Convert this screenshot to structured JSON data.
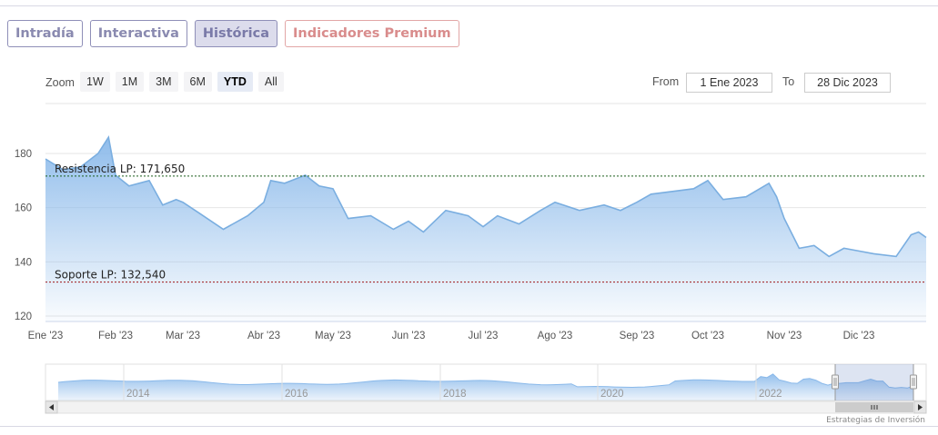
{
  "tabs": [
    {
      "label": "Intradía",
      "state": "normal"
    },
    {
      "label": "Interactiva",
      "state": "normal"
    },
    {
      "label": "Histórica",
      "state": "active"
    },
    {
      "label": "Indicadores Premium",
      "state": "premium"
    }
  ],
  "zoom": {
    "label": "Zoom",
    "buttons": [
      "1W",
      "1M",
      "3M",
      "6M",
      "YTD",
      "All"
    ],
    "selected": "YTD"
  },
  "range": {
    "from_label": "From",
    "from_value": "1 Ene 2023",
    "to_label": "To",
    "to_value": "28 Dic 2023"
  },
  "credit": "Estrategias de Inversión",
  "colors": {
    "line": "#7aaee0",
    "fill_top": "#8ab9ea",
    "resistance": "#1a5e1a",
    "support": "#a01818"
  },
  "chart_data": {
    "type": "area",
    "title": "",
    "xlabel": "",
    "ylabel": "",
    "ylim": [
      115,
      175
    ],
    "yticks": [
      120,
      140,
      160,
      180
    ],
    "x_tick_labels": [
      "Ene '23",
      "Feb '23",
      "Mar '23",
      "Abr '23",
      "May '23",
      "Jun '23",
      "Jul '23",
      "Ago '23",
      "Sep '23",
      "Oct '23",
      "Nov '23",
      "Dic '23"
    ],
    "grid": true,
    "x_month_index": [
      0,
      0.25,
      0.5,
      0.75,
      0.9,
      1.0,
      1.2,
      1.5,
      1.7,
      1.9,
      2.0,
      2.2,
      2.5,
      2.8,
      3.0,
      3.1,
      3.3,
      3.6,
      3.8,
      4.0,
      4.2,
      4.5,
      4.8,
      5.0,
      5.2,
      5.5,
      5.8,
      6.0,
      6.2,
      6.5,
      6.8,
      7.0,
      7.3,
      7.6,
      7.8,
      8.0,
      8.2,
      8.5,
      8.8,
      9.0,
      9.2,
      9.5,
      9.8,
      9.9,
      10.0,
      10.2,
      10.4,
      10.6,
      10.8,
      11.0,
      11.2,
      11.5,
      11.7,
      11.8,
      12.0
    ],
    "y": [
      178,
      174,
      175,
      180,
      186,
      172,
      168,
      170,
      161,
      163,
      162,
      158,
      152,
      157,
      162,
      170,
      169,
      172,
      168,
      167,
      156,
      157,
      152,
      155,
      151,
      159,
      157,
      153,
      157,
      154,
      159,
      162,
      159,
      161,
      159,
      162,
      165,
      166,
      167,
      170,
      163,
      164,
      169,
      164,
      156,
      145,
      146,
      142,
      145,
      144,
      143,
      142,
      150,
      151,
      149
    ],
    "series": [
      {
        "name": "",
        "values": [
          178,
          174,
          175,
          180,
          186,
          172,
          168,
          170,
          161,
          163,
          162,
          158,
          152,
          157,
          162,
          170,
          169,
          172,
          168,
          167,
          156,
          157,
          152,
          155,
          151,
          159,
          157,
          153,
          157,
          154,
          159,
          162,
          159,
          161,
          159,
          162,
          165,
          166,
          167,
          170,
          163,
          164,
          169,
          164,
          156,
          145,
          146,
          142,
          145,
          144,
          143,
          142,
          150,
          151,
          149
        ]
      }
    ],
    "annotations": [
      {
        "label": "Resistencia LP: 171,650",
        "value": 171.65,
        "kind": "resistance"
      },
      {
        "label": "Soporte LP: 132,540",
        "value": 132.54,
        "kind": "support"
      }
    ],
    "navigator": {
      "year_labels": [
        "2014",
        "2016",
        "2018",
        "2020",
        "2022"
      ]
    }
  }
}
